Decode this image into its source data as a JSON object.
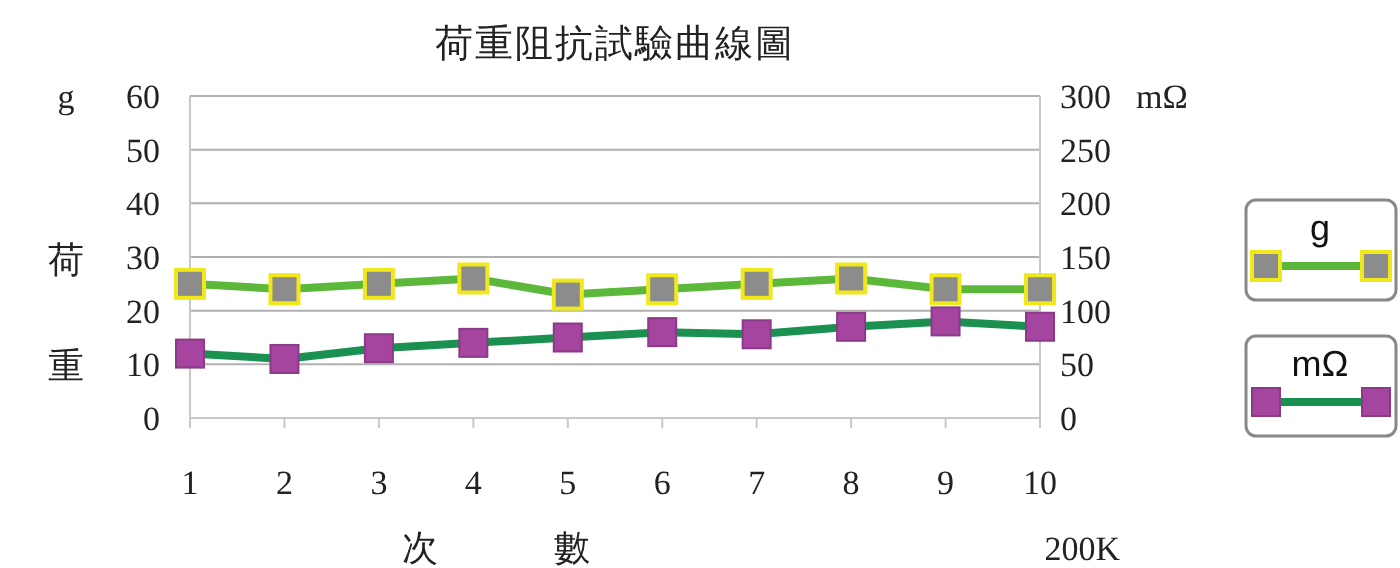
{
  "chart_data": {
    "type": "line",
    "title": "荷重阻抗試驗曲線圖",
    "xlabel": "次數",
    "ylabel": "荷重",
    "y2label": "mΩ",
    "annotations": [
      "g",
      "200K"
    ],
    "categories": [
      "1",
      "2",
      "3",
      "4",
      "5",
      "6",
      "7",
      "8",
      "9",
      "10"
    ],
    "series": [
      {
        "name": "g",
        "color": "#5cb83a",
        "values": [
          25,
          24,
          25,
          26,
          23,
          24,
          25,
          26,
          24,
          24
        ]
      },
      {
        "name": "mΩ",
        "color": "#1a9150",
        "axis": "y2",
        "values": [
          60,
          55,
          65,
          70,
          75,
          80,
          78,
          85,
          90,
          85
        ]
      }
    ],
    "ylim": [
      0,
      60
    ],
    "yticks": [
      0,
      10,
      20,
      30,
      40,
      50,
      60
    ],
    "y2lim": [
      0,
      300
    ],
    "y2ticks": [
      0,
      50,
      100,
      150,
      200,
      250,
      300
    ],
    "grid": "y",
    "legend": "right",
    "marker": "square",
    "line_style": "solid"
  }
}
